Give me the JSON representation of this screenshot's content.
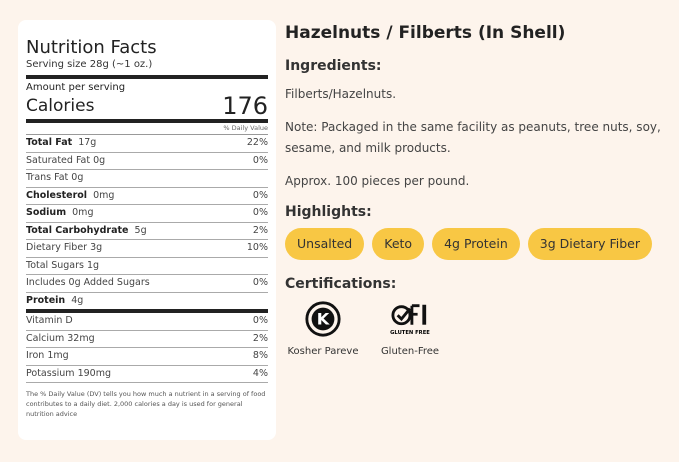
{
  "nutrition": {
    "title": "Nutrition Facts",
    "serving": "Serving size 28g (~1 oz.)",
    "amount": "Amount per serving",
    "calories_label": "Calories",
    "calories": "176",
    "dv_header": "% Daily Value",
    "rows": [
      {
        "name": "Total Fat",
        "amt": "17g",
        "dv": "22%",
        "bold": true
      },
      {
        "name": "Saturated Fat 0g",
        "amt": "",
        "dv": "0%"
      },
      {
        "name": "Trans Fat 0g",
        "amt": "",
        "dv": ""
      },
      {
        "name": "Cholesterol",
        "amt": "0mg",
        "dv": "0%",
        "bold": true
      },
      {
        "name": "Sodium",
        "amt": "0mg",
        "dv": "0%",
        "bold": true
      },
      {
        "name": "Total Carbohydrate",
        "amt": "5g",
        "dv": "2%",
        "bold": true
      },
      {
        "name": "Dietary Fiber 3g",
        "amt": "",
        "dv": "10%"
      },
      {
        "name": "Total Sugars 1g",
        "amt": "",
        "dv": ""
      },
      {
        "name": "Includes 0g Added Sugars",
        "amt": "",
        "dv": "0%"
      },
      {
        "name": "Protein",
        "amt": "4g",
        "dv": "",
        "bold": true
      }
    ],
    "vitamins": [
      {
        "name": "Vitamin D",
        "dv": "0%"
      },
      {
        "name": "Calcium 32mg",
        "dv": "2%"
      },
      {
        "name": "Iron 1mg",
        "dv": "8%"
      },
      {
        "name": "Potassium 190mg",
        "dv": "4%"
      }
    ],
    "footnote": "The % Daily Value (DV) tells you how much a nutrient in a serving of food contributes to a daily diet. 2,000 calories a day is used for general nutrition advice"
  },
  "product": {
    "title": "Hazelnuts / Filberts (In Shell)",
    "ingredients_heading": "Ingredients:",
    "ingredients": "Filberts/Hazelnuts.",
    "note": "Note: Packaged in the same facility as peanuts, tree nuts, soy, sesame, and milk products.",
    "approx": "Approx. 100 pieces per pound.",
    "highlights_heading": "Highlights:",
    "highlights": [
      "Unsalted",
      "Keto",
      "4g Protein",
      "3g Dietary Fiber"
    ],
    "certifications_heading": "Certifications:",
    "certifications": [
      {
        "label": "Kosher Pareve",
        "icon": "kosher-k-icon"
      },
      {
        "label": "Gluten-Free",
        "icon": "gfco-gluten-free-icon",
        "logo_text": "GLUTEN FREE"
      }
    ]
  },
  "colors": {
    "background": "#fdf4ec",
    "pill": "#f8c744"
  }
}
